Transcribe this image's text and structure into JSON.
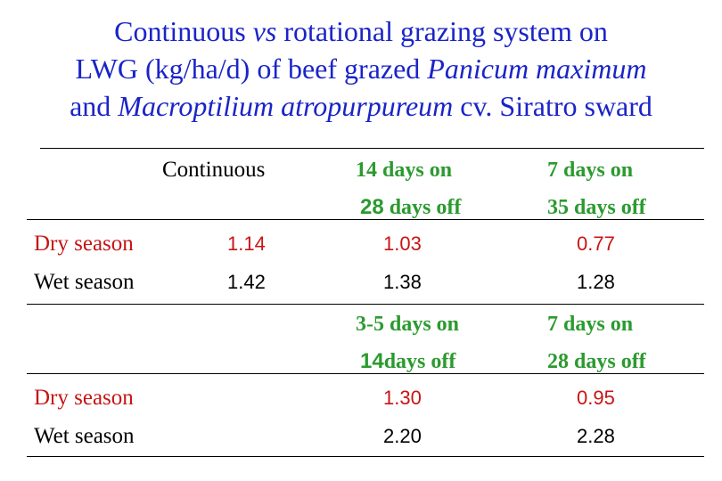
{
  "title": {
    "line1_a": "Continuous ",
    "line1_b": "vs",
    "line1_c": " rotational grazing system on",
    "line2_a": "LWG (kg/ha/d) of beef grazed ",
    "line2_b": "Panicum maximum",
    "line3_a": "and ",
    "line3_b": "Macroptilium atropurpureum",
    "line3_c": " cv. Siratro sward"
  },
  "table1": {
    "headers": {
      "continuous": "Continuous",
      "col2_line1": "14 days on",
      "col2_line2_num": "28",
      "col2_line2_text": " days off",
      "col3_line1": "7 days on",
      "col3_line2": "35 days off"
    },
    "rows": [
      {
        "label": "Dry season",
        "values": [
          "1.14",
          "1.03",
          "0.77"
        ]
      },
      {
        "label": "Wet season",
        "values": [
          "1.42",
          "1.38",
          "1.28"
        ]
      }
    ]
  },
  "table2": {
    "headers": {
      "col2_line1": "3-5 days on",
      "col2_line2_num": "14",
      "col2_line2_text": "days off",
      "col3_line1": "7 days on",
      "col3_line2": "28 days off"
    },
    "rows": [
      {
        "label": "Dry season",
        "values": [
          "1.30",
          "0.95"
        ]
      },
      {
        "label": "Wet season",
        "values": [
          "2.20",
          "2.28"
        ]
      }
    ]
  },
  "colors": {
    "title": "#1a24c8",
    "header": "#2b9a2f",
    "dry": "#c81414",
    "wet": "#000000"
  }
}
